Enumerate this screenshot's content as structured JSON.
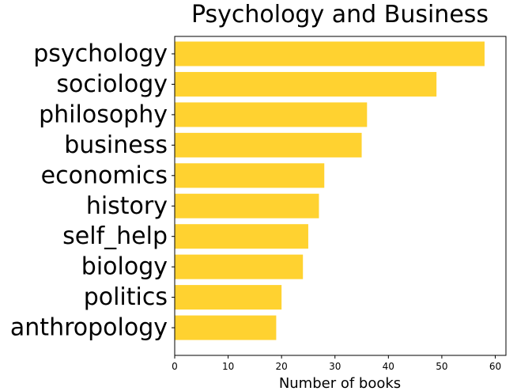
{
  "chart_data": {
    "type": "bar",
    "orientation": "horizontal",
    "title": "Psychology and Business",
    "xlabel": "Number of books",
    "ylabel": "",
    "categories": [
      "psychology",
      "sociology",
      "philosophy",
      "business",
      "economics",
      "history",
      "self_help",
      "biology",
      "politics",
      "anthropology"
    ],
    "values": [
      58,
      49,
      36,
      35,
      28,
      27,
      25,
      24,
      20,
      19
    ],
    "xlim": [
      0,
      62
    ],
    "xticks": [
      0,
      10,
      20,
      30,
      40,
      50,
      60
    ],
    "xtick_labels": [
      "0",
      "10",
      "20",
      "30",
      "40",
      "50",
      "60"
    ],
    "grid": false,
    "legend": "none",
    "bar_color": "#FFD230",
    "axis_color": "#000000"
  }
}
